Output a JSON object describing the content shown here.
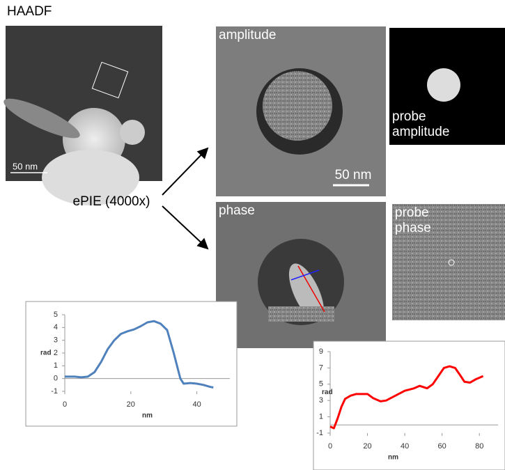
{
  "figure": {
    "haadf_label": "HAADF",
    "haadf_scale": "50 nm",
    "method": "ePIE (4000x)",
    "amplitude_label": "amplitude",
    "amplitude_scale": "50 nm",
    "probe_amplitude_label": [
      "probe",
      "amplitude"
    ],
    "phase_label": "phase",
    "probe_phase_label": [
      "probe",
      "phase"
    ]
  },
  "chart_data": [
    {
      "type": "line",
      "xlabel": "nm",
      "ylabel": "rad",
      "xlim": [
        0,
        50
      ],
      "ylim": [
        -1,
        5
      ],
      "xticks": [
        0,
        20,
        40
      ],
      "yticks": [
        -1,
        0,
        1,
        2,
        3,
        4,
        5
      ],
      "series": [
        {
          "color": "#4f81bd",
          "x": [
            0,
            3,
            5,
            7,
            9,
            11,
            13,
            15,
            17,
            19,
            21,
            23,
            25,
            27,
            29,
            31,
            33,
            35,
            36,
            38,
            40,
            42,
            44,
            45
          ],
          "values": [
            0.15,
            0.15,
            0.1,
            0.15,
            0.5,
            1.3,
            2.3,
            3.0,
            3.5,
            3.7,
            3.85,
            4.1,
            4.4,
            4.5,
            4.3,
            3.8,
            2.0,
            0.0,
            -0.4,
            -0.35,
            -0.4,
            -0.5,
            -0.65,
            -0.7
          ]
        }
      ]
    },
    {
      "type": "line",
      "xlabel": "nm",
      "ylabel": "rad",
      "xlim": [
        0,
        90
      ],
      "ylim": [
        -1,
        9
      ],
      "xticks": [
        0,
        20,
        40,
        60,
        80
      ],
      "yticks": [
        -1,
        1,
        3,
        5,
        7,
        9
      ],
      "series": [
        {
          "color": "#ff0000",
          "x": [
            0,
            2,
            4,
            6,
            8,
            11,
            14,
            20,
            23,
            27,
            30,
            35,
            40,
            45,
            48,
            52,
            55,
            58,
            61,
            64,
            67,
            70,
            72,
            75,
            78,
            80,
            82
          ],
          "values": [
            -0.2,
            -0.4,
            0.8,
            2.2,
            3.2,
            3.6,
            3.8,
            3.8,
            3.3,
            2.9,
            3.0,
            3.6,
            4.2,
            4.5,
            4.8,
            4.5,
            5.0,
            6.0,
            7.0,
            7.2,
            7.0,
            6.0,
            5.3,
            5.2,
            5.6,
            5.8,
            6.0
          ]
        }
      ]
    }
  ]
}
